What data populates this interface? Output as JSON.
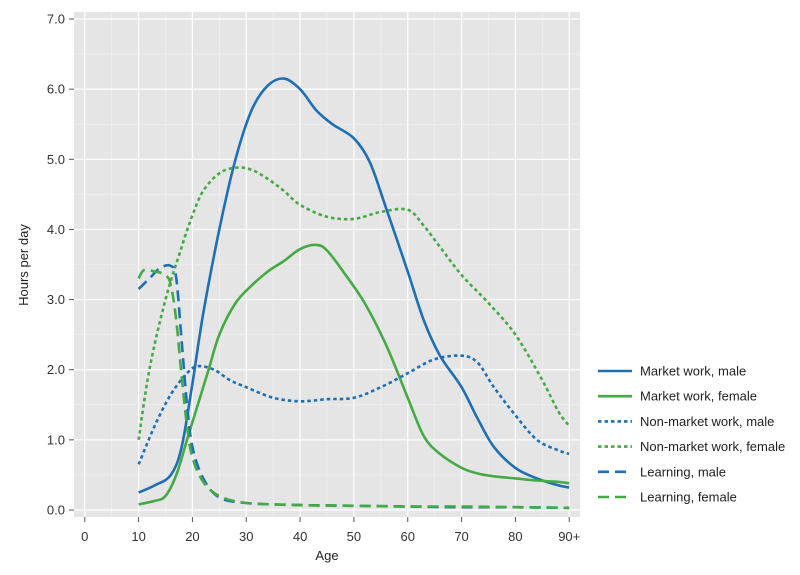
{
  "chart_data": {
    "type": "line",
    "xlabel": "Age",
    "ylabel": "Hours per day",
    "xlim": [
      -2,
      92
    ],
    "ylim": [
      -0.1,
      7.1
    ],
    "grid": true,
    "legend_position": "right",
    "x_ticks": [
      {
        "value": 0,
        "label": "0"
      },
      {
        "value": 10,
        "label": "10"
      },
      {
        "value": 20,
        "label": "20"
      },
      {
        "value": 30,
        "label": "30"
      },
      {
        "value": 40,
        "label": "40"
      },
      {
        "value": 50,
        "label": "50"
      },
      {
        "value": 60,
        "label": "60"
      },
      {
        "value": 70,
        "label": "70"
      },
      {
        "value": 80,
        "label": "80"
      },
      {
        "value": 90,
        "label": "90+"
      }
    ],
    "y_ticks": [
      {
        "value": 0,
        "label": "0.0"
      },
      {
        "value": 1,
        "label": "1.0"
      },
      {
        "value": 2,
        "label": "2.0"
      },
      {
        "value": 3,
        "label": "3.0"
      },
      {
        "value": 4,
        "label": "4.0"
      },
      {
        "value": 5,
        "label": "5.0"
      },
      {
        "value": 6,
        "label": "6.0"
      },
      {
        "value": 7,
        "label": "7.0"
      }
    ],
    "series": [
      {
        "name": "Market work, male",
        "color": "#1f6fb5",
        "style": "solid",
        "x": [
          10,
          13,
          16,
          18,
          20,
          22,
          25,
          28,
          31,
          34,
          37,
          40,
          43,
          46,
          50,
          53,
          56,
          60,
          63,
          66,
          70,
          73,
          76,
          80,
          84,
          88,
          90
        ],
        "y": [
          0.25,
          0.35,
          0.5,
          0.9,
          1.8,
          2.8,
          4.0,
          5.0,
          5.7,
          6.05,
          6.15,
          6.0,
          5.7,
          5.5,
          5.3,
          4.95,
          4.3,
          3.4,
          2.7,
          2.2,
          1.75,
          1.3,
          0.9,
          0.6,
          0.45,
          0.35,
          0.32
        ]
      },
      {
        "name": "Market work, female",
        "color": "#44aa44",
        "style": "solid",
        "x": [
          10,
          13,
          15,
          17,
          19,
          21,
          23,
          25,
          28,
          31,
          34,
          37,
          40,
          43,
          45,
          48,
          52,
          56,
          60,
          63,
          66,
          70,
          73,
          76,
          80,
          84,
          88,
          90
        ],
        "y": [
          0.08,
          0.13,
          0.2,
          0.5,
          1.0,
          1.5,
          2.0,
          2.5,
          2.95,
          3.2,
          3.4,
          3.55,
          3.72,
          3.78,
          3.7,
          3.4,
          2.95,
          2.35,
          1.6,
          1.05,
          0.8,
          0.6,
          0.52,
          0.48,
          0.45,
          0.42,
          0.4,
          0.38
        ]
      },
      {
        "name": "Non-market work, male",
        "color": "#1f6fb5",
        "style": "dotted",
        "x": [
          10,
          13,
          16,
          19,
          21,
          24,
          27,
          30,
          35,
          40,
          45,
          50,
          55,
          60,
          65,
          70,
          73,
          76,
          80,
          84,
          88,
          90
        ],
        "y": [
          0.65,
          1.2,
          1.65,
          1.95,
          2.05,
          2.0,
          1.85,
          1.75,
          1.6,
          1.55,
          1.58,
          1.6,
          1.75,
          1.95,
          2.15,
          2.2,
          2.1,
          1.75,
          1.35,
          1.0,
          0.85,
          0.8
        ]
      },
      {
        "name": "Non-market work, female",
        "color": "#44aa44",
        "style": "dotted",
        "x": [
          10,
          12,
          15,
          18,
          20,
          22,
          25,
          28,
          31,
          34,
          37,
          40,
          45,
          50,
          55,
          60,
          63,
          66,
          70,
          75,
          80,
          85,
          88,
          90
        ],
        "y": [
          1.0,
          2.0,
          3.0,
          3.75,
          4.2,
          4.55,
          4.8,
          4.88,
          4.85,
          4.72,
          4.55,
          4.35,
          4.18,
          4.15,
          4.25,
          4.28,
          4.05,
          3.75,
          3.35,
          2.95,
          2.5,
          1.85,
          1.4,
          1.2
        ]
      },
      {
        "name": "Learning, male",
        "color": "#1f6fb5",
        "style": "dashed",
        "x": [
          10,
          12,
          14,
          16,
          17,
          18,
          19,
          20,
          22,
          25,
          30,
          40,
          50,
          60,
          70,
          80,
          90
        ],
        "y": [
          3.15,
          3.3,
          3.45,
          3.48,
          3.3,
          2.4,
          1.5,
          0.9,
          0.45,
          0.18,
          0.1,
          0.07,
          0.06,
          0.05,
          0.04,
          0.04,
          0.03
        ]
      },
      {
        "name": "Learning, female",
        "color": "#44aa44",
        "style": "dashed",
        "x": [
          10,
          11,
          13,
          15,
          16,
          17,
          18,
          19,
          20,
          22,
          25,
          30,
          40,
          50,
          60,
          70,
          80,
          90
        ],
        "y": [
          3.3,
          3.42,
          3.4,
          3.35,
          3.2,
          2.7,
          1.9,
          1.2,
          0.75,
          0.4,
          0.2,
          0.1,
          0.07,
          0.06,
          0.05,
          0.05,
          0.04,
          0.03
        ]
      }
    ]
  }
}
